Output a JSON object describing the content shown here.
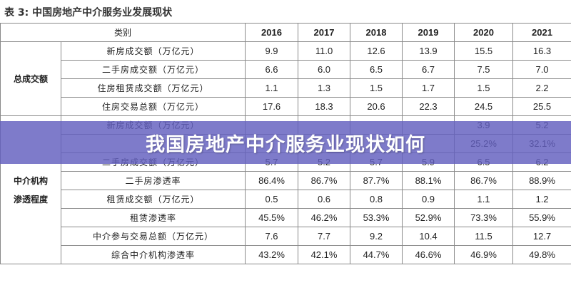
{
  "table_caption": "表 3:  中国房地产中介服务业发展现状",
  "banner_title": "我国房地产中介服务业现状如何",
  "colors": {
    "banner": "#615ebe",
    "border": "#8a8a8a"
  },
  "table": {
    "type_header": "类别",
    "years": [
      "2016",
      "2017",
      "2018",
      "2019",
      "2020",
      "2021"
    ],
    "groups": [
      {
        "name_lines": [
          "总成交额"
        ],
        "rows": [
          {
            "label": "新房成交额（万亿元）",
            "values": [
              "9.9",
              "11.0",
              "12.6",
              "13.9",
              "15.5",
              "16.3"
            ]
          },
          {
            "label": "二手房成交额（万亿元）",
            "values": [
              "6.6",
              "6.0",
              "6.5",
              "6.7",
              "7.5",
              "7.0"
            ]
          },
          {
            "label": "住房租赁成交额（万亿元）",
            "values": [
              "1.1",
              "1.3",
              "1.5",
              "1.7",
              "1.5",
              "2.2"
            ]
          },
          {
            "label": "住房交易总额（万亿元）",
            "values": [
              "17.6",
              "18.3",
              "20.6",
              "22.3",
              "24.5",
              "25.5"
            ]
          }
        ]
      },
      {
        "name_lines": [
          "中介机构",
          "渗透程度"
        ],
        "rows": [
          {
            "label": "新房成交额（万亿元）",
            "values": [
              "",
              "",
              "",
              "",
              "3.9",
              "5.2"
            ]
          },
          {
            "label": "",
            "values": [
              "",
              "",
              "",
              "",
              "25.2%",
              "32.1%"
            ]
          },
          {
            "label": "二手房成交额（万亿元）",
            "values": [
              "5.7",
              "5.2",
              "5.7",
              "5.9",
              "6.5",
              "6.2"
            ]
          },
          {
            "label": "二手房渗透率",
            "values": [
              "86.4%",
              "86.7%",
              "87.7%",
              "88.1%",
              "86.7%",
              "88.9%"
            ]
          },
          {
            "label": "租赁成交额（万亿元）",
            "values": [
              "0.5",
              "0.6",
              "0.8",
              "0.9",
              "1.1",
              "1.2"
            ]
          },
          {
            "label": "租赁渗透率",
            "values": [
              "45.5%",
              "46.2%",
              "53.3%",
              "52.9%",
              "73.3%",
              "55.9%"
            ]
          },
          {
            "label": "中介参与交易总额（万亿元）",
            "values": [
              "7.6",
              "7.7",
              "9.2",
              "10.4",
              "11.5",
              "12.7"
            ]
          },
          {
            "label": "综合中介机构渗透率",
            "values": [
              "43.2%",
              "42.1%",
              "44.7%",
              "46.6%",
              "46.9%",
              "49.8%"
            ]
          }
        ]
      }
    ]
  }
}
